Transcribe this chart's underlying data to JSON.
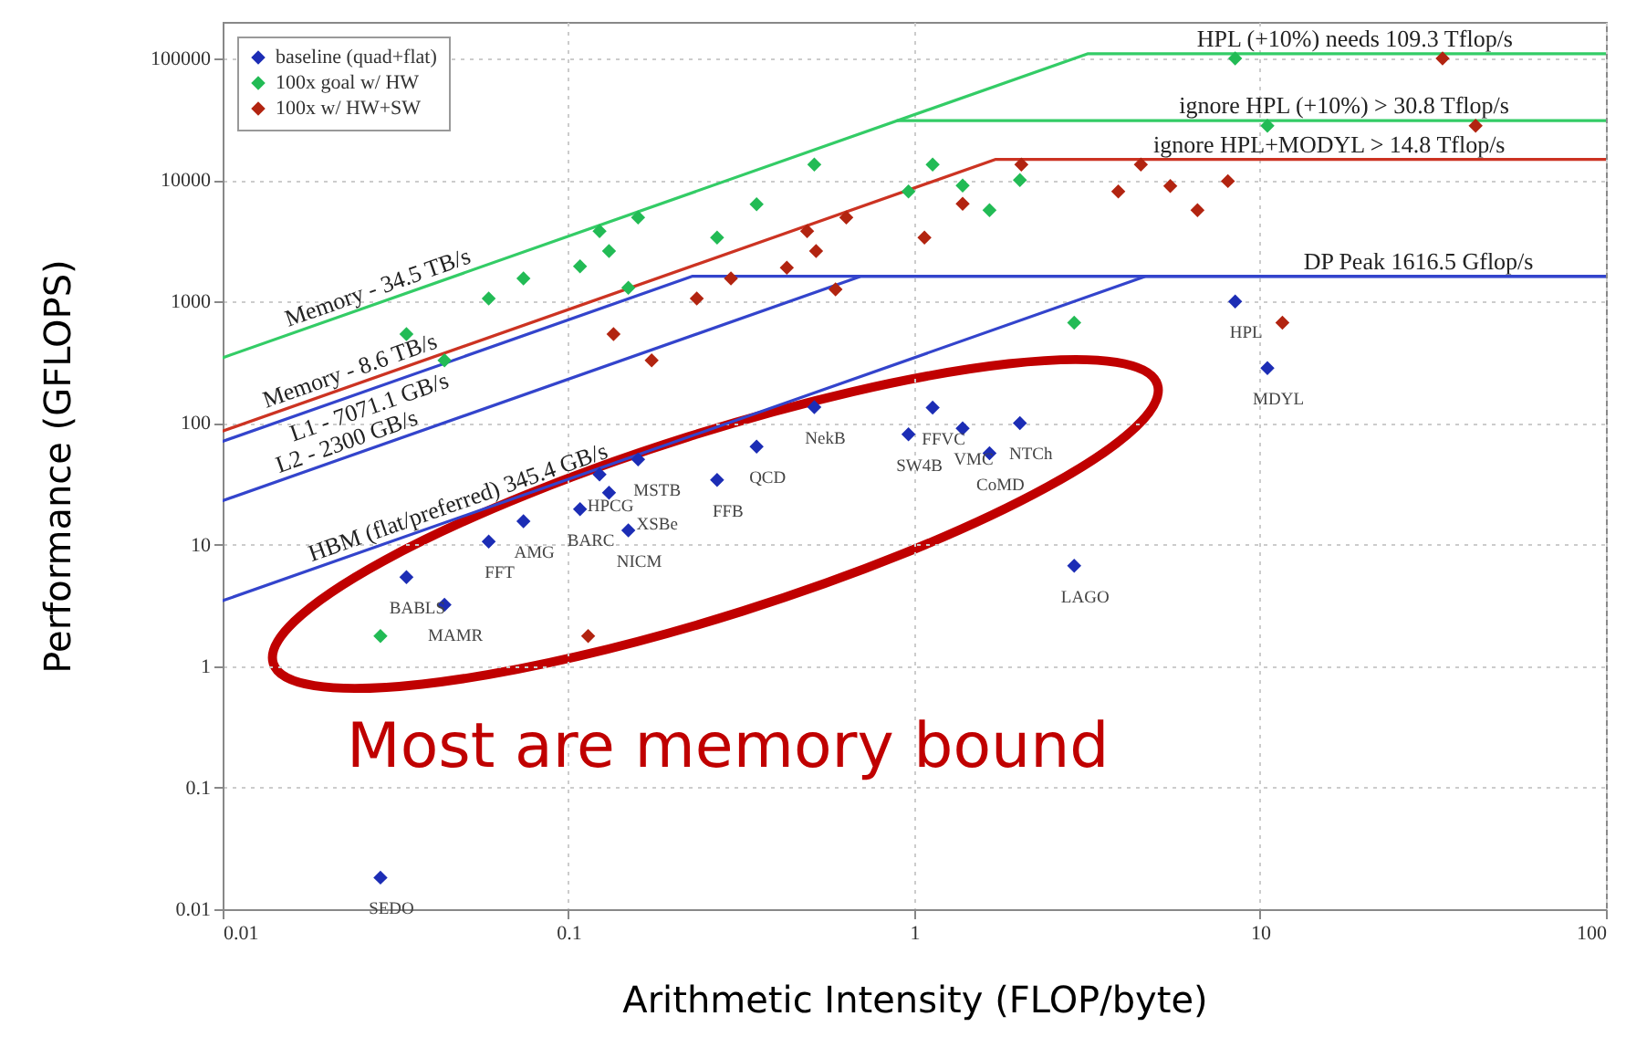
{
  "chart_data": {
    "type": "scatter",
    "xlabel": "Arithmetic Intensity (FLOP/byte)",
    "ylabel": "Performance (GFLOPS)",
    "log": "xy",
    "xlim": [
      0.01,
      100
    ],
    "ylim": [
      0.01,
      200000
    ],
    "xticks": [
      0.01,
      0.1,
      1,
      10,
      100
    ],
    "yticks": [
      0.01,
      0.1,
      1,
      10,
      100,
      1000,
      10000,
      100000
    ],
    "grid": true,
    "legend": "top left",
    "marker": "diamond",
    "series": [
      {
        "type": "line",
        "marker": "none",
        "color": "#33cc66",
        "x": [
          0.01,
          3.168,
          100
        ],
        "values": [
          345,
          109300,
          109300
        ]
      },
      {
        "type": "line",
        "marker": "none",
        "color": "#33cc66",
        "x": [
          0.8928,
          100
        ],
        "values": [
          30800,
          30800
        ]
      },
      {
        "type": "line",
        "marker": "none",
        "color": "#cc3322",
        "x": [
          0.01,
          1.721,
          100
        ],
        "values": [
          86,
          14800,
          14800
        ]
      },
      {
        "type": "line",
        "marker": "none",
        "color": "#3344cc",
        "x": [
          0.01,
          0.2286,
          100
        ],
        "values": [
          70.71,
          1616.5,
          1616.5
        ]
      },
      {
        "type": "line",
        "marker": "none",
        "color": "#3344cc",
        "x": [
          0.01,
          0.7028,
          100
        ],
        "values": [
          23,
          1616.5,
          1616.5
        ]
      },
      {
        "type": "line",
        "marker": "none",
        "color": "#3344cc",
        "x": [
          0.01,
          4.68,
          100
        ],
        "values": [
          3.454,
          1616.5,
          1616.5
        ]
      },
      {
        "name": "baseline (quad+flat)",
        "color": "#1c2db5",
        "x": [
          0.034,
          0.0438,
          0.0588,
          0.0741,
          0.108,
          0.123,
          0.131,
          0.149,
          0.159,
          0.269,
          0.35,
          0.514,
          0.962,
          1.13,
          1.38,
          1.65,
          2.02,
          2.9,
          8.47,
          10.5,
          0.0286
        ],
        "values": [
          5.4,
          3.2,
          10.6,
          15.6,
          19.6,
          37.8,
          26.7,
          13.1,
          50.3,
          34,
          64.1,
          135,
          80.7,
          134,
          90.5,
          56.4,
          100,
          6.7,
          1000,
          283,
          0.0182
        ]
      },
      {
        "name": "100x goal w/ HW",
        "color": "#22bb55",
        "x": [
          0.034,
          0.0438,
          0.0588,
          0.0741,
          0.108,
          0.123,
          0.131,
          0.149,
          0.159,
          0.269,
          0.35,
          0.514,
          0.962,
          1.13,
          1.38,
          1.65,
          2.02,
          2.9,
          8.47,
          10.5,
          0.0286
        ],
        "values": [
          540,
          328,
          1060,
          1550,
          1950,
          3800,
          2600,
          1300,
          4910,
          3360,
          6320,
          13400,
          8050,
          13400,
          9020,
          5640,
          10000,
          670,
          100000,
          28000,
          1.77
        ]
      },
      {
        "name": "100x w/ HW+SW",
        "color": "#b22410",
        "x": [
          0.135,
          0.174,
          0.235,
          0.295,
          0.428,
          0.49,
          0.52,
          0.592,
          0.636,
          1.07,
          1.38,
          2.04,
          3.89,
          4.52,
          5.5,
          6.59,
          8.07,
          11.6,
          33.7,
          42,
          0.114
        ],
        "values": [
          540,
          328,
          1060,
          1550,
          1900,
          3800,
          2600,
          1260,
          4910,
          3360,
          6380,
          13400,
          8050,
          13400,
          8930,
          5640,
          9800,
          670,
          100000,
          28000,
          1.77
        ]
      }
    ],
    "annotations": [
      {
        "text": "Memory - 34.5 TB/s",
        "x": 0.029,
        "y": 1000.5
      },
      {
        "text": "Memory - 8.6 TB/s",
        "x": 0.0241,
        "y": 207.26
      },
      {
        "text": "L1 - 7071.1 GB/s",
        "x": 0.0256,
        "y": 181.02
      },
      {
        "text": "L2 - 2300 GB/s",
        "x": 0.0236,
        "y": 54.28
      },
      {
        "text": "HBM (flat/preferred) 345.4 GB/s",
        "x": 0.0495,
        "y": 17.097
      },
      {
        "text": "HPL (+10%) needs 109.3 Tflop/s",
        "x": 18.8,
        "y": 109300
      },
      {
        "text": "ignore HPL (+10%) > 30.8 Tflop/s",
        "x": 17.5,
        "y": 30800
      },
      {
        "text": "ignore HPL+MODYL > 14.8 Tflop/s",
        "x": 15.85,
        "y": 14800
      },
      {
        "text": "DP Peak 1616.5 Gflop/s",
        "x": 28.7,
        "y": 1616.5
      },
      {
        "text": "BABLS",
        "x": 0.034,
        "y": 5.4
      },
      {
        "text": "MAMR",
        "x": 0.0438,
        "y": 3.2
      },
      {
        "text": "FFT",
        "x": 0.0588,
        "y": 10.6
      },
      {
        "text": "AMG",
        "x": 0.0741,
        "y": 15.6
      },
      {
        "text": "BARC",
        "x": 0.108,
        "y": 19.6
      },
      {
        "text": "HPCG",
        "x": 0.123,
        "y": 37.8
      },
      {
        "text": "XSBe",
        "x": 0.131,
        "y": 26.7
      },
      {
        "text": "MSTB",
        "x": 0.159,
        "y": 50.3
      },
      {
        "text": "NICM",
        "x": 0.149,
        "y": 13.1
      },
      {
        "text": "FFB",
        "x": 0.269,
        "y": 34
      },
      {
        "text": "QCD",
        "x": 0.35,
        "y": 64.1
      },
      {
        "text": "NekB",
        "x": 0.514,
        "y": 135
      },
      {
        "text": "SW4B",
        "x": 0.962,
        "y": 80.7
      },
      {
        "text": "FFVC",
        "x": 1.13,
        "y": 134
      },
      {
        "text": "VMC",
        "x": 1.38,
        "y": 90.5
      },
      {
        "text": "NTCh",
        "x": 2.02,
        "y": 100
      },
      {
        "text": "CoMD",
        "x": 1.65,
        "y": 56.4
      },
      {
        "text": "LAGO",
        "x": 2.9,
        "y": 6.7
      },
      {
        "text": "MDYL",
        "x": 10.5,
        "y": 283
      },
      {
        "text": "HPL",
        "x": 8.47,
        "y": 1000
      },
      {
        "text": "SEDO",
        "x": 0.0286,
        "y": 0.0182
      },
      "Most are memory bound"
    ]
  }
}
